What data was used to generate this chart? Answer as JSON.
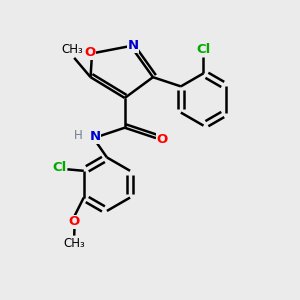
{
  "bg_color": "#ebebeb",
  "atom_colors": {
    "C": "#000000",
    "N": "#0000cd",
    "O": "#ff0000",
    "Cl": "#00aa00",
    "H": "#708090"
  },
  "bond_color": "#000000",
  "fig_size": [
    3.0,
    3.0
  ],
  "dpi": 100
}
